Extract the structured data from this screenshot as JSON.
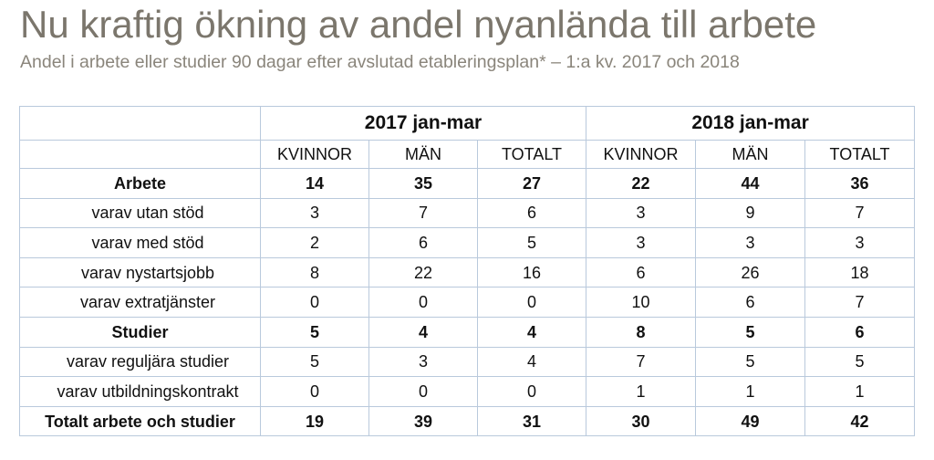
{
  "title": "Nu kraftig ökning av andel nyanlända till arbete",
  "subtitle": "Andel i arbete eller studier 90 dagar efter avslutad etableringsplan* – 1:a kv. 2017 och 2018",
  "table": {
    "groups": [
      "2017 jan-mar",
      "2018 jan-mar"
    ],
    "columns": [
      "KVINNOR",
      "MÄN",
      "TOTALT",
      "KVINNOR",
      "MÄN",
      "TOTALT"
    ],
    "rows": [
      {
        "label": "Arbete",
        "values": [
          "14",
          "35",
          "27",
          "22",
          "44",
          "36"
        ]
      },
      {
        "label": "varav utan stöd",
        "values": [
          "3",
          "7",
          "6",
          "3",
          "9",
          "7"
        ]
      },
      {
        "label": "varav med stöd",
        "values": [
          "2",
          "6",
          "5",
          "3",
          "3",
          "3"
        ]
      },
      {
        "label": "varav nystartsjobb",
        "values": [
          "8",
          "22",
          "16",
          "6",
          "26",
          "18"
        ]
      },
      {
        "label": "varav extratjänster",
        "values": [
          "0",
          "0",
          "0",
          "10",
          "6",
          "7"
        ]
      },
      {
        "label": "Studier",
        "values": [
          "5",
          "4",
          "4",
          "8",
          "5",
          "6"
        ]
      },
      {
        "label": "varav reguljära studier",
        "values": [
          "5",
          "3",
          "4",
          "7",
          "5",
          "5"
        ]
      },
      {
        "label": "varav utbildningskontrakt",
        "values": [
          "0",
          "0",
          "0",
          "1",
          "1",
          "1"
        ]
      },
      {
        "label": "Totalt arbete och studier",
        "values": [
          "19",
          "39",
          "31",
          "30",
          "49",
          "42"
        ]
      }
    ]
  }
}
